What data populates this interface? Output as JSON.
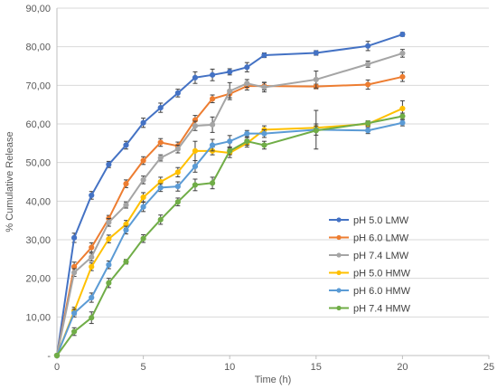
{
  "chart_data": {
    "type": "line",
    "xlabel": "Time (h)",
    "ylabel": "% Cumulative Release",
    "xlim": [
      0,
      25
    ],
    "ylim": [
      0,
      90
    ],
    "xticks": [
      "0",
      "5",
      "10",
      "15",
      "20",
      "25"
    ],
    "yticks": [
      "-",
      "10,00",
      "20,00",
      "30,00",
      "40,00",
      "50,00",
      "60,00",
      "70,00",
      "80,00",
      "90,00"
    ],
    "grid": "horizontal",
    "legend_position": "right",
    "x": [
      0,
      1,
      2,
      3,
      4,
      5,
      6,
      7,
      8,
      9,
      10,
      11,
      12,
      15,
      18,
      20
    ],
    "series": [
      {
        "name": "pH 5.0 LMW",
        "color": "#4472C4",
        "values": [
          0,
          30.5,
          41.5,
          49.5,
          54.5,
          60.3,
          64.2,
          68.0,
          72.0,
          72.7,
          73.5,
          74.7,
          77.8,
          78.4,
          80.2,
          83.2
        ],
        "errors": [
          0,
          1.2,
          1.0,
          0.8,
          1.0,
          1.2,
          1.2,
          1.0,
          1.5,
          1.5,
          0.8,
          1.2,
          0.6,
          0.6,
          1.2,
          0.5
        ]
      },
      {
        "name": "pH 6.0 LMW",
        "color": "#ED7D31",
        "values": [
          0,
          23.0,
          28.0,
          35.5,
          44.5,
          50.5,
          55.2,
          54.3,
          61.0,
          66.5,
          67.8,
          69.8,
          69.8,
          69.7,
          70.2,
          72.2
        ],
        "errors": [
          0,
          1.2,
          1.2,
          0.8,
          1.0,
          1.0,
          1.0,
          1.0,
          1.2,
          1.0,
          1.0,
          1.0,
          1.0,
          0.6,
          1.2,
          1.2
        ]
      },
      {
        "name": "pH 7.4 LMW",
        "color": "#A5A5A5",
        "values": [
          0,
          21.5,
          25.5,
          34.5,
          39.0,
          45.5,
          51.2,
          53.5,
          59.5,
          59.8,
          68.5,
          70.5,
          69.5,
          71.5,
          75.5,
          78.3
        ],
        "errors": [
          0,
          1.0,
          1.0,
          1.0,
          0.8,
          1.0,
          0.8,
          1.0,
          1.2,
          2.0,
          2.2,
          1.0,
          1.2,
          2.2,
          0.8,
          1.0
        ]
      },
      {
        "name": "pH 5.0 HMW",
        "color": "#FFC000",
        "values": [
          0,
          11.5,
          23.0,
          30.2,
          34.0,
          41.0,
          45.0,
          47.5,
          53.0,
          53.0,
          52.5,
          55.0,
          58.5,
          59.0,
          60.0,
          64.0
        ],
        "errors": [
          0,
          1.0,
          1.0,
          1.0,
          1.0,
          1.2,
          1.2,
          1.2,
          2.5,
          1.0,
          1.2,
          1.0,
          1.0,
          1.0,
          0.6,
          2.0
        ]
      },
      {
        "name": "pH 6.0 HMW",
        "color": "#5B9BD5",
        "values": [
          0,
          11.0,
          15.0,
          23.5,
          32.5,
          38.5,
          43.5,
          43.8,
          49.0,
          54.5,
          55.5,
          57.5,
          57.5,
          58.5,
          58.3,
          60.3
        ],
        "errors": [
          0,
          1.0,
          1.2,
          1.0,
          1.0,
          1.2,
          1.0,
          1.2,
          1.5,
          1.5,
          1.5,
          0.8,
          1.0,
          5.0,
          0.8,
          0.8
        ]
      },
      {
        "name": "pH 7.4 HMW",
        "color": "#70AD47",
        "values": [
          0,
          6.2,
          9.8,
          18.8,
          24.3,
          30.3,
          35.2,
          39.8,
          44.2,
          44.7,
          53.0,
          55.5,
          54.5,
          58.3,
          60.2,
          62.0
        ],
        "errors": [
          0,
          1.0,
          1.5,
          1.2,
          0.6,
          1.0,
          1.2,
          1.0,
          1.5,
          1.5,
          1.0,
          1.0,
          1.0,
          1.2,
          0.6,
          0.8
        ]
      }
    ]
  }
}
